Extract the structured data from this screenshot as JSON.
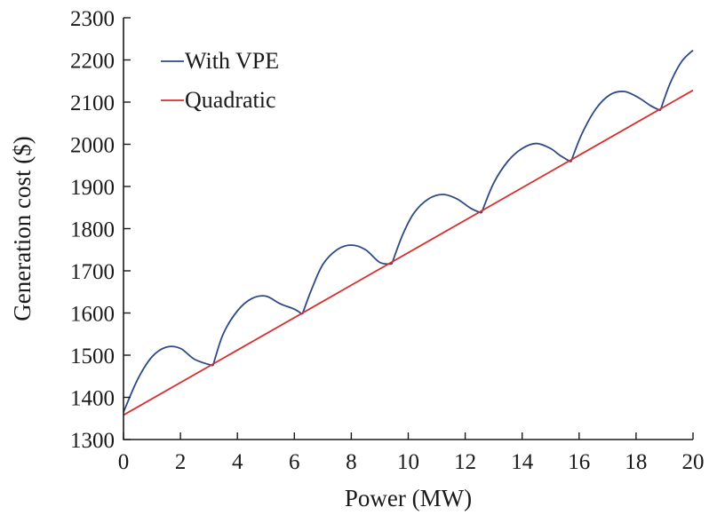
{
  "chart_data": {
    "type": "line",
    "title": "",
    "xlabel": "Power (MW)",
    "ylabel": "Generation cost ($)",
    "xlim": [
      0,
      20
    ],
    "ylim": [
      1300,
      2300
    ],
    "xticks": [
      0,
      2,
      4,
      6,
      8,
      10,
      12,
      14,
      16,
      18,
      20
    ],
    "yticks": [
      1300,
      1400,
      1500,
      1600,
      1700,
      1800,
      1900,
      2000,
      2100,
      2200,
      2300
    ],
    "grid": false,
    "legend_position": "top-left",
    "series": [
      {
        "name": "With VPE",
        "color": "#2e4a86",
        "x": [
          0,
          0.5,
          1,
          1.5,
          2,
          2.5,
          3.14,
          3.5,
          4,
          4.5,
          5,
          5.5,
          6,
          6.28,
          6.6,
          7,
          7.5,
          8,
          8.5,
          9,
          9.42,
          9.8,
          10.2,
          10.7,
          11.2,
          11.7,
          12.2,
          12.57,
          13,
          13.5,
          14,
          14.5,
          15,
          15.3,
          15.71,
          16.1,
          16.6,
          17.1,
          17.6,
          18.1,
          18.5,
          18.85,
          19.2,
          19.6,
          20
        ],
        "y": [
          1365,
          1443,
          1496,
          1519,
          1516,
          1490,
          1475,
          1550,
          1605,
          1634,
          1640,
          1622,
          1609,
          1597,
          1655,
          1715,
          1750,
          1761,
          1750,
          1720,
          1716,
          1785,
          1837,
          1870,
          1881,
          1871,
          1848,
          1837,
          1908,
          1960,
          1990,
          2002,
          1990,
          1975,
          1958,
          2025,
          2085,
          2118,
          2125,
          2110,
          2092,
          2080,
          2145,
          2196,
          2223
        ]
      },
      {
        "name": "Quadratic",
        "color": "#d62f2f",
        "x": [
          0,
          20
        ],
        "y": [
          1358,
          2128
        ]
      }
    ]
  }
}
